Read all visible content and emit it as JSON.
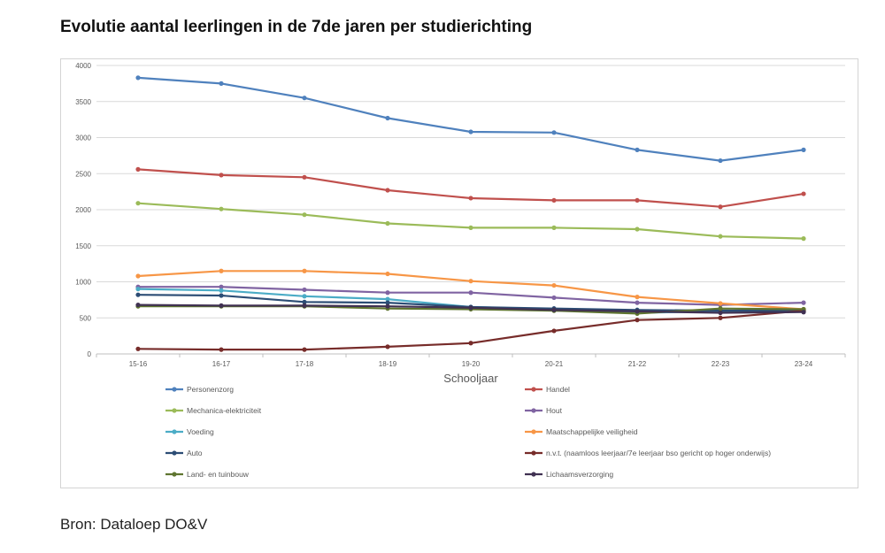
{
  "page": {
    "title": "Evolutie aantal leerlingen in de 7de jaren per studierichting",
    "source": "Bron: Dataloep DO&V"
  },
  "chart_data": {
    "type": "line",
    "title": "Evolutie aantal leerlingen in de 7de jaren per studierichting",
    "xlabel": "Schooljaar",
    "ylabel": "",
    "ylim": [
      0,
      4000
    ],
    "yticks": [
      0,
      500,
      1000,
      1500,
      2000,
      2500,
      3000,
      3500,
      4000
    ],
    "grid": true,
    "legend_position": "bottom",
    "categories": [
      "15-16",
      "16-17",
      "17-18",
      "18-19",
      "19-20",
      "20-21",
      "21-22",
      "22-23",
      "23-24"
    ],
    "series": [
      {
        "name": "Personenzorg",
        "color": "#4f81bd",
        "values": [
          3830,
          3750,
          3550,
          3270,
          3080,
          3070,
          2830,
          2680,
          2830
        ]
      },
      {
        "name": "Handel",
        "color": "#c0504d",
        "values": [
          2560,
          2480,
          2450,
          2270,
          2160,
          2130,
          2130,
          2040,
          2220
        ]
      },
      {
        "name": "Mechanica-elektriciteit",
        "color": "#9bbb59",
        "values": [
          2090,
          2010,
          1930,
          1810,
          1750,
          1750,
          1730,
          1630,
          1600
        ]
      },
      {
        "name": "Hout",
        "color": "#8064a2",
        "values": [
          930,
          930,
          890,
          850,
          850,
          780,
          710,
          680,
          710
        ]
      },
      {
        "name": "Voeding",
        "color": "#4bacc6",
        "values": [
          900,
          880,
          800,
          760,
          650,
          620,
          570,
          590,
          610
        ]
      },
      {
        "name": "Maatschappelijke veiligheid",
        "color": "#f79646",
        "values": [
          1080,
          1150,
          1150,
          1110,
          1010,
          950,
          790,
          700,
          620
        ]
      },
      {
        "name": "Auto",
        "color": "#2c4d75",
        "values": [
          820,
          810,
          720,
          710,
          650,
          630,
          610,
          600,
          600
        ]
      },
      {
        "name": "n.v.t. (naamloos leerjaar/7e leerjaar bso gericht op hoger onderwijs)",
        "color": "#772c2a",
        "values": [
          70,
          60,
          60,
          100,
          150,
          320,
          470,
          500,
          600
        ]
      },
      {
        "name": "Land- en tuinbouw",
        "color": "#5f7530",
        "values": [
          660,
          660,
          660,
          630,
          620,
          600,
          560,
          630,
          620
        ]
      },
      {
        "name": "Lichaamsverzorging",
        "color": "#403152",
        "values": [
          680,
          670,
          670,
          660,
          640,
          610,
          590,
          570,
          580
        ]
      }
    ]
  }
}
